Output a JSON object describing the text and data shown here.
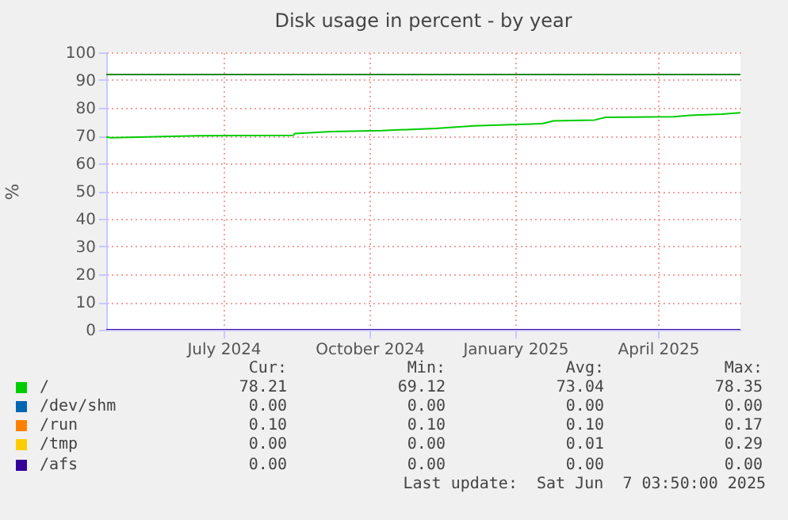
{
  "chart_data": {
    "type": "line",
    "title": "Disk usage in percent - by year",
    "ylabel": "%",
    "xlim": [
      "2024-05-03",
      "2025-06-07"
    ],
    "xticks": [
      {
        "value": "2024-07-16",
        "label": "July 2024"
      },
      {
        "value": "2024-10-16",
        "label": "October 2024"
      },
      {
        "value": "2025-01-16",
        "label": "January 2025"
      },
      {
        "value": "2025-04-16",
        "label": "April 2025"
      }
    ],
    "ylim": [
      0,
      100
    ],
    "yticks": [
      0,
      10,
      20,
      30,
      40,
      50,
      60,
      70,
      80,
      90,
      100
    ],
    "grid": true,
    "legend": "bottom",
    "series": [
      {
        "name": "/",
        "color": "#00cc00",
        "x": [
          "2024-05-03",
          "2024-05-06",
          "2024-06-30",
          "2024-07-24",
          "2024-08-29",
          "2024-08-30",
          "2024-09-15",
          "2024-09-22",
          "2024-10-05",
          "2024-10-24",
          "2024-11-27",
          "2024-12-21",
          "2025-02-02",
          "2025-02-09",
          "2025-03-07",
          "2025-03-14",
          "2025-04-26",
          "2025-05-06",
          "2025-05-26",
          "2025-06-07"
        ],
        "values": [
          69.5,
          69.2,
          69.9,
          70.0,
          70.1,
          70.7,
          71.2,
          71.4,
          71.6,
          71.8,
          72.6,
          73.5,
          74.3,
          75.3,
          75.6,
          76.6,
          76.8,
          77.3,
          77.7,
          78.2
        ]
      },
      {
        "name": "/dev/shm",
        "color": "#0066b3"
      },
      {
        "name": "/run",
        "color": "#ff8000"
      },
      {
        "name": "/tmp",
        "color": "#ffcc00"
      },
      {
        "name": "/afs",
        "color": "#330099",
        "x": [
          "2024-05-03",
          "2025-06-07"
        ],
        "values": [
          0,
          0
        ]
      }
    ],
    "ref_lines": [
      {
        "axis": "y",
        "value": 92,
        "color": "#228822"
      }
    ],
    "annotations": [
      "Cur:",
      "Min:",
      "Avg:",
      "Max:",
      "78.21",
      "69.12",
      "73.04",
      "78.35",
      "0.00",
      "0.00",
      "0.00",
      "0.00",
      "0.10",
      "0.10",
      "0.10",
      "0.17",
      "0.00",
      "0.00",
      "0.01",
      "0.29",
      "0.00",
      "0.00",
      "0.00",
      "0.00",
      "Last update:  Sat Jun  7 03:50:00 2025"
    ]
  }
}
